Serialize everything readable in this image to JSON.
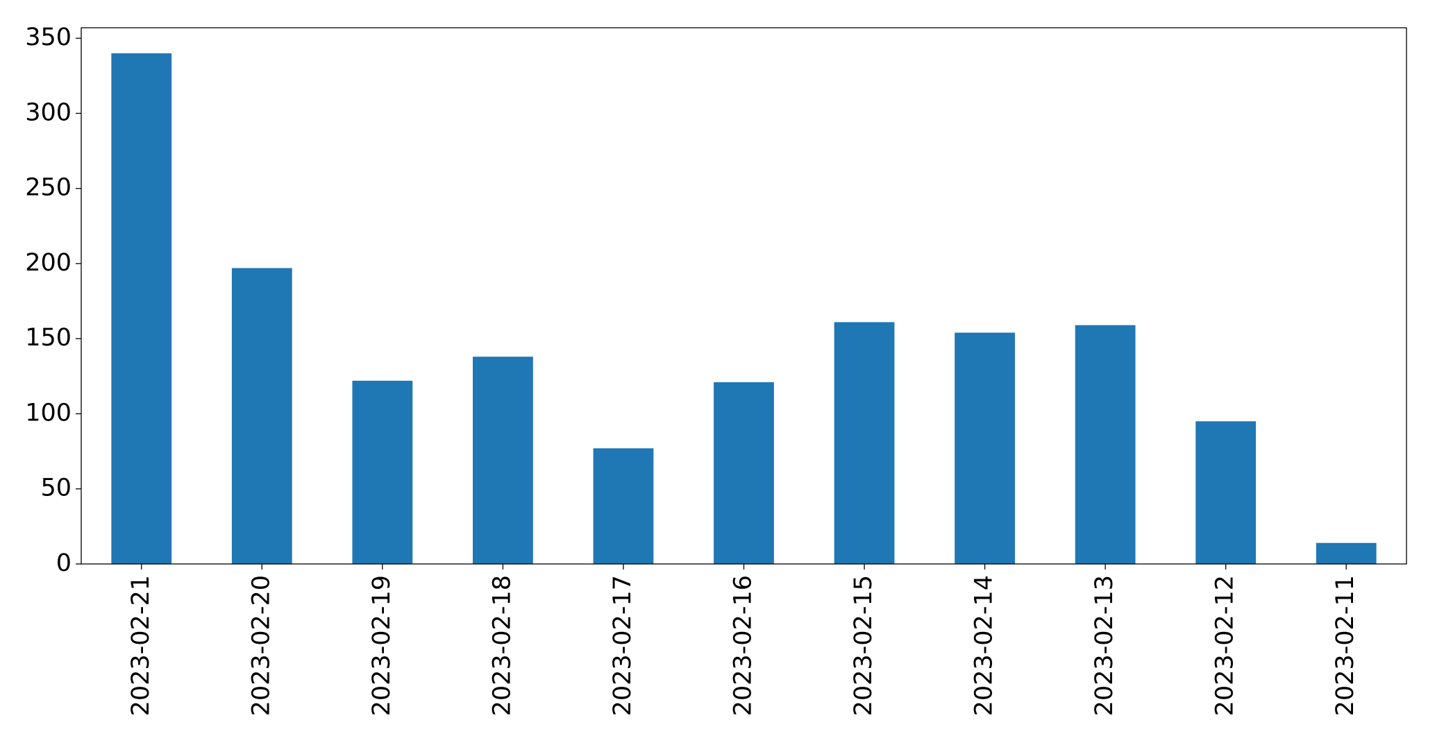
{
  "chart_data": {
    "type": "bar",
    "categories": [
      "2023-02-21",
      "2023-02-20",
      "2023-02-19",
      "2023-02-18",
      "2023-02-17",
      "2023-02-16",
      "2023-02-15",
      "2023-02-14",
      "2023-02-13",
      "2023-02-12",
      "2023-02-11"
    ],
    "values": [
      340,
      197,
      122,
      138,
      77,
      121,
      161,
      154,
      159,
      95,
      14
    ],
    "color": "#1f77b4",
    "ylim": [
      0,
      357
    ],
    "yticks": [
      0,
      50,
      100,
      150,
      200,
      250,
      300,
      350
    ],
    "grid": false
  }
}
